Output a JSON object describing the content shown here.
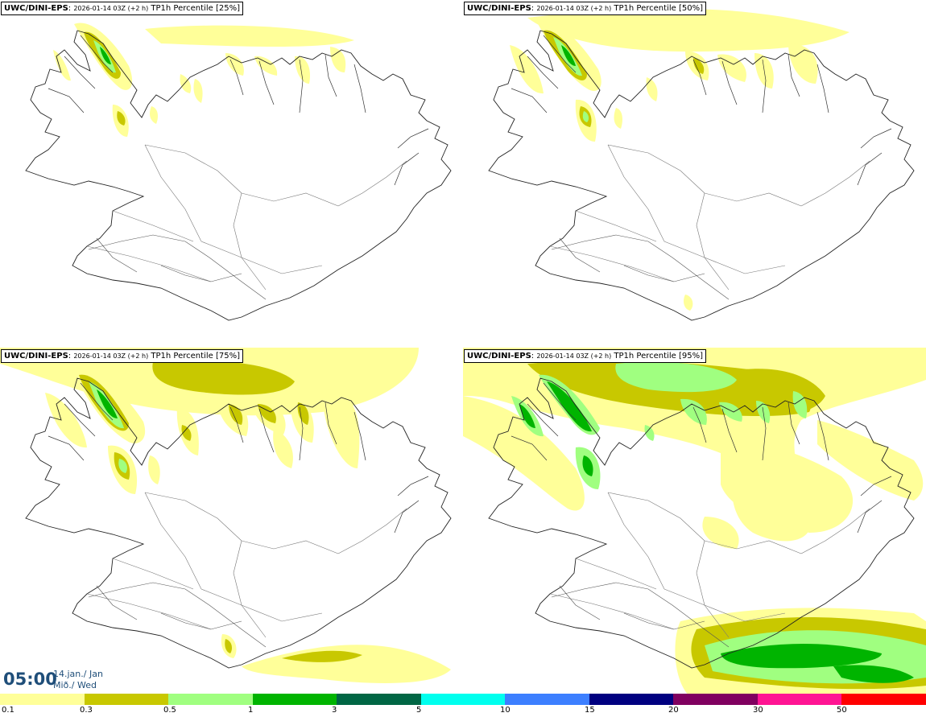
{
  "panels": [
    {
      "model": "UWC/DINI-EPS",
      "run": "2026-01-14 03Z (+2 h)",
      "product": "TP1h Percentile [25%]"
    },
    {
      "model": "UWC/DINI-EPS",
      "run": "2026-01-14 03Z (+2 h)",
      "product": "TP1h Percentile [50%]"
    },
    {
      "model": "UWC/DINI-EPS",
      "run": "2026-01-14 03Z (+2 h)",
      "product": "TP1h Percentile [75%]"
    },
    {
      "model": "UWC/DINI-EPS",
      "run": "2026-01-14 03Z (+2 h)",
      "product": "TP1h Percentile [95%]"
    }
  ],
  "valid_time": {
    "time": "05:00",
    "date_line1": "14.jan./ Jan",
    "date_line2": "Mið./ Wed"
  },
  "colorbar": {
    "labels": [
      "0.1",
      "0.3",
      "0.5",
      "1",
      "3",
      "5",
      "10",
      "15",
      "20",
      "30",
      "50"
    ],
    "colors": [
      "#ffff99",
      "#c8c800",
      "#a0ff80",
      "#00b400",
      "#006644",
      "#00ffee",
      "#3d7fff",
      "#000080",
      "#800060",
      "#ff1493",
      "#ff0000"
    ]
  }
}
